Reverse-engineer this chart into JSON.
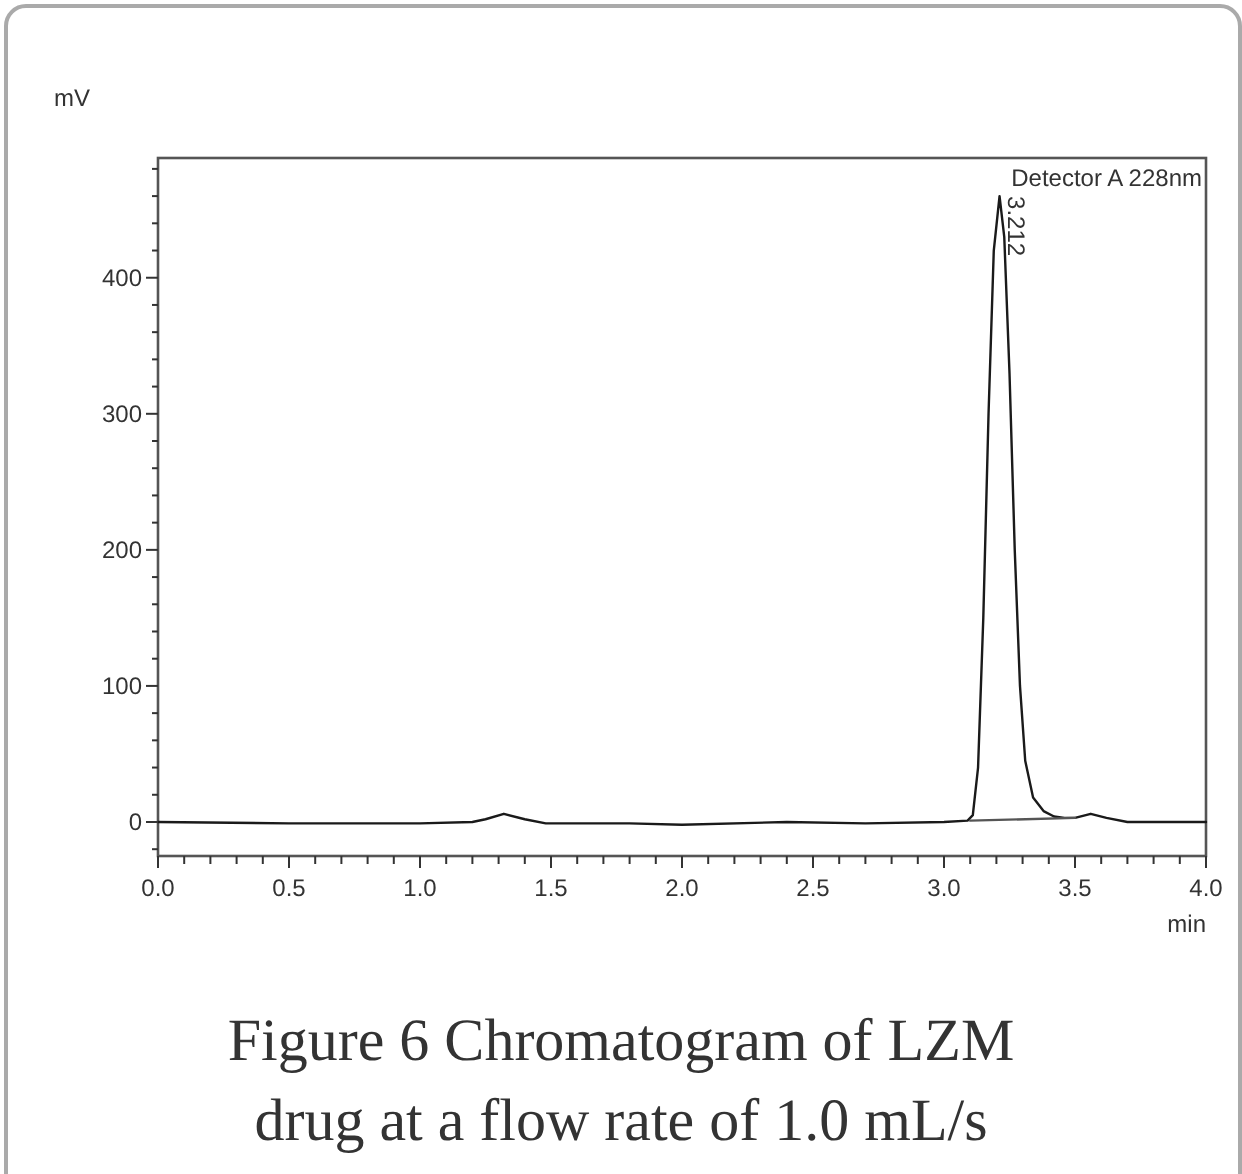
{
  "chart_data": {
    "type": "line",
    "title": "Figure 6 Chromatogram of LZM drug at a flow rate of 1.0 mL/s",
    "xlabel": "min",
    "ylabel": "mV",
    "xlim": [
      0,
      4
    ],
    "ylim": [
      -25,
      488
    ],
    "xticks": [
      {
        "value": 0,
        "label": "0.0"
      },
      {
        "value": 0.1,
        "label": null
      },
      {
        "value": 0.2,
        "label": null
      },
      {
        "value": 0.3,
        "label": null
      },
      {
        "value": 0.4,
        "label": null
      },
      {
        "value": 0.5,
        "label": "0.5"
      },
      {
        "value": 0.6,
        "label": null
      },
      {
        "value": 0.7,
        "label": null
      },
      {
        "value": 0.8,
        "label": null
      },
      {
        "value": 0.9,
        "label": null
      },
      {
        "value": 1,
        "label": "1.0"
      },
      {
        "value": 1.1,
        "label": null
      },
      {
        "value": 1.2,
        "label": null
      },
      {
        "value": 1.3,
        "label": null
      },
      {
        "value": 1.4,
        "label": null
      },
      {
        "value": 1.5,
        "label": "1.5"
      },
      {
        "value": 1.6,
        "label": null
      },
      {
        "value": 1.7,
        "label": null
      },
      {
        "value": 1.8,
        "label": null
      },
      {
        "value": 1.9,
        "label": null
      },
      {
        "value": 2,
        "label": "2.0"
      },
      {
        "value": 2.1,
        "label": null
      },
      {
        "value": 2.2,
        "label": null
      },
      {
        "value": 2.3,
        "label": null
      },
      {
        "value": 2.4,
        "label": null
      },
      {
        "value": 2.5,
        "label": "2.5"
      },
      {
        "value": 2.6,
        "label": null
      },
      {
        "value": 2.7,
        "label": null
      },
      {
        "value": 2.8,
        "label": null
      },
      {
        "value": 2.9,
        "label": null
      },
      {
        "value": 3,
        "label": "3.0"
      },
      {
        "value": 3.1,
        "label": null
      },
      {
        "value": 3.2,
        "label": null
      },
      {
        "value": 3.3,
        "label": null
      },
      {
        "value": 3.4,
        "label": null
      },
      {
        "value": 3.5,
        "label": "3.5"
      },
      {
        "value": 3.6,
        "label": null
      },
      {
        "value": 3.7,
        "label": null
      },
      {
        "value": 3.8,
        "label": null
      },
      {
        "value": 3.9,
        "label": null
      },
      {
        "value": 4,
        "label": "4.0"
      }
    ],
    "yticks": [
      {
        "value": -20,
        "label": null
      },
      0,
      {
        "value": 20,
        "label": null
      },
      {
        "value": 40,
        "label": null
      },
      {
        "value": 60,
        "label": null
      },
      {
        "value": 80,
        "label": null
      },
      100,
      {
        "value": 120,
        "label": null
      },
      {
        "value": 140,
        "label": null
      },
      {
        "value": 160,
        "label": null
      },
      {
        "value": 180,
        "label": null
      },
      200,
      {
        "value": 220,
        "label": null
      },
      {
        "value": 240,
        "label": null
      },
      {
        "value": 260,
        "label": null
      },
      {
        "value": 280,
        "label": null
      },
      300,
      {
        "value": 320,
        "label": null
      },
      {
        "value": 340,
        "label": null
      },
      {
        "value": 360,
        "label": null
      },
      {
        "value": 380,
        "label": null
      },
      400,
      {
        "value": 420,
        "label": null
      },
      {
        "value": 440,
        "label": null
      },
      {
        "value": 460,
        "label": null
      },
      {
        "value": 480,
        "label": null
      }
    ],
    "grid": false,
    "marker": "none",
    "line_style": "solid",
    "series": [
      {
        "color": "#1a1a1a",
        "x": [
          0,
          0.5,
          1.0,
          1.2,
          1.25,
          1.32,
          1.4,
          1.48,
          1.8,
          2.0,
          2.4,
          2.7,
          3.0,
          3.09,
          3.11,
          3.13,
          3.15,
          3.17,
          3.19,
          3.212,
          3.23,
          3.25,
          3.27,
          3.29,
          3.31,
          3.34,
          3.38,
          3.42,
          3.46,
          3.5,
          3.56,
          3.62,
          3.7,
          3.8,
          4.0
        ],
        "values": [
          0,
          -1,
          -1,
          0,
          2,
          6,
          2,
          -1,
          -1,
          -2,
          0,
          -1,
          0,
          1,
          5,
          40,
          150,
          300,
          420,
          460,
          430,
          330,
          200,
          100,
          45,
          18,
          8,
          4,
          3,
          3,
          6,
          3,
          0,
          0,
          0
        ]
      },
      {
        "color": "#555555",
        "x": [
          3.1,
          3.5
        ],
        "values": [
          1,
          3
        ]
      }
    ],
    "annotations": [
      {
        "text": "3.212",
        "x": 3.212,
        "y": 460
      },
      "Detector A 228nm"
    ]
  }
}
